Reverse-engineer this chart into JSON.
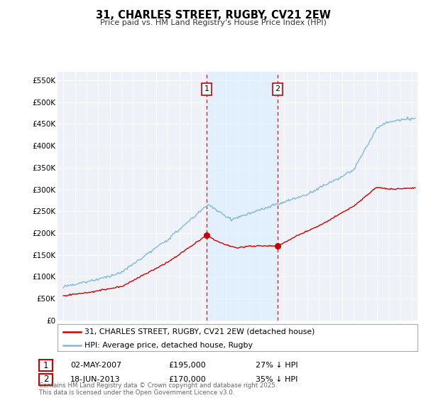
{
  "title": "31, CHARLES STREET, RUGBY, CV21 2EW",
  "subtitle": "Price paid vs. HM Land Registry's House Price Index (HPI)",
  "ylabel_ticks": [
    "£0",
    "£50K",
    "£100K",
    "£150K",
    "£200K",
    "£250K",
    "£300K",
    "£350K",
    "£400K",
    "£450K",
    "£500K",
    "£550K"
  ],
  "ytick_vals": [
    0,
    50000,
    100000,
    150000,
    200000,
    250000,
    300000,
    350000,
    400000,
    450000,
    500000,
    550000
  ],
  "ylim": [
    0,
    570000
  ],
  "xlim_start": 1994.5,
  "xlim_end": 2025.5,
  "purchase1_x": 2007.33,
  "purchase1_y": 195000,
  "purchase2_x": 2013.46,
  "purchase2_y": 170000,
  "purchase1_date": "02-MAY-2007",
  "purchase1_price": "£195,000",
  "purchase1_hpi": "27% ↓ HPI",
  "purchase2_date": "18-JUN-2013",
  "purchase2_price": "£170,000",
  "purchase2_hpi": "35% ↓ HPI",
  "hpi_color": "#7fb8d8",
  "price_color": "#cc0000",
  "vline_color": "#cc0000",
  "shade_color": "#ddeeff",
  "legend_label_price": "31, CHARLES STREET, RUGBY, CV21 2EW (detached house)",
  "legend_label_hpi": "HPI: Average price, detached house, Rugby",
  "footer": "Contains HM Land Registry data © Crown copyright and database right 2025.\nThis data is licensed under the Open Government Licence v3.0.",
  "background_color": "#ffffff",
  "plot_bg_color": "#eef2f8",
  "grid_color": "#ffffff"
}
